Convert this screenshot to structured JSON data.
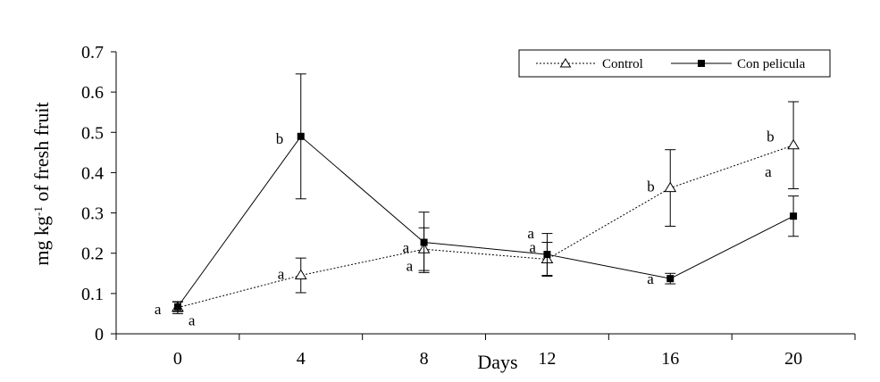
{
  "chart_data": {
    "type": "line",
    "title": "",
    "xlabel": "Days",
    "ylabel": {
      "base": "mg kg",
      "sup": "-1",
      "rest": " of fresh fruit"
    },
    "x": [
      0,
      4,
      8,
      12,
      16,
      20
    ],
    "xlim": [
      -2,
      22
    ],
    "ylim": [
      0,
      0.7
    ],
    "yticks": [
      "0",
      "0.1",
      "0.2",
      "0.3",
      "0.4",
      "0.5",
      "0.6",
      "0.7"
    ],
    "xticks": [
      "0",
      "4",
      "8",
      "12",
      "16",
      "20"
    ],
    "grid": false,
    "legend_position": "top-right",
    "series": [
      {
        "name": "Control",
        "marker": "open-triangle",
        "line": "dotted",
        "values": [
          0.065,
          0.145,
          0.21,
          0.185,
          0.362,
          0.468
        ],
        "errors": [
          0.015,
          0.043,
          0.053,
          0.042,
          0.095,
          0.108
        ],
        "labels": [
          "a",
          "a",
          "a",
          "a",
          "b",
          "b"
        ]
      },
      {
        "name": "Con pelicula",
        "marker": "filled-square",
        "line": "solid",
        "values": [
          0.067,
          0.49,
          0.227,
          0.197,
          0.137,
          0.292
        ],
        "errors": [
          0.012,
          0.155,
          0.075,
          0.052,
          0.013,
          0.05
        ],
        "labels": [
          "a",
          "b",
          "a",
          "a",
          "a",
          "a"
        ]
      }
    ]
  }
}
